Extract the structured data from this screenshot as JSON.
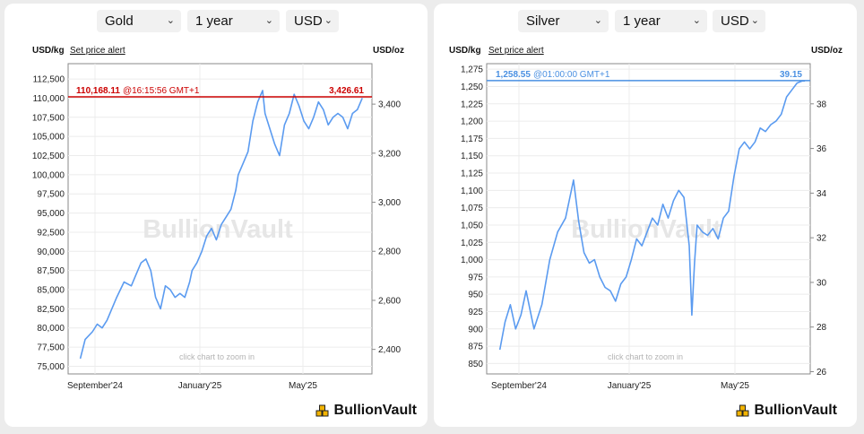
{
  "panels": [
    {
      "metal": "Gold",
      "period": "1 year",
      "currency": "USD",
      "left_unit": "USD/kg",
      "alert_link": "Set price alert",
      "right_unit": "USD/oz",
      "watermark": "BullionVault",
      "zoom_hint": "click chart to zoom in",
      "brand": "BullionVault",
      "current_price_left": "110,168.11",
      "current_time": "@16:15:56 GMT+1",
      "current_price_right": "3,426.61"
    },
    {
      "metal": "Silver",
      "period": "1 year",
      "currency": "USD",
      "left_unit": "USD/kg",
      "alert_link": "Set price alert",
      "right_unit": "USD/oz",
      "watermark": "BullionVault",
      "zoom_hint": "click chart to zoom in",
      "brand": "BullionVault",
      "current_price_left": "1,258.55",
      "current_time": "@01:00:00 GMT+1",
      "current_price_right": "39.15"
    }
  ],
  "colors": {
    "line": "#5b9bf0",
    "gold_price_line": "#cc0000",
    "silver_price_line": "#4a90e2",
    "brand_mark": "#f2b300"
  },
  "chart_data": [
    {
      "type": "line",
      "title": "Gold",
      "x_ticks": [
        "September'24",
        "January'25",
        "May'25"
      ],
      "y_left_ticks": [
        "75,000",
        "77,500",
        "80,000",
        "82,500",
        "85,000",
        "87,500",
        "90,000",
        "92,500",
        "95,000",
        "97,500",
        "100,000",
        "102,500",
        "105,000",
        "107,500",
        "110,000",
        "112,500"
      ],
      "y_left_range": [
        74000,
        114500
      ],
      "y_right_ticks": [
        "2,400",
        "2,600",
        "2,800",
        "3,000",
        "3,200",
        "3,400"
      ],
      "y_right_values": [
        2400,
        2600,
        2800,
        3000,
        3200,
        3400
      ],
      "y_right_range": [
        2300,
        3565
      ],
      "current_value_left": 110168.11,
      "series": [
        {
          "x_month": [
            0.5,
            0.7,
            1.0,
            1.2,
            1.4,
            1.6,
            2.0,
            2.3,
            2.6,
            2.8,
            3.0,
            3.2,
            3.4,
            3.6,
            3.8,
            4.0,
            4.2,
            4.4,
            4.6,
            4.8,
            5.0,
            5.1,
            5.3,
            5.5,
            5.7,
            5.9,
            6.1,
            6.3,
            6.5,
            6.7,
            6.9,
            7.0,
            7.2,
            7.4,
            7.6,
            7.8,
            8.0,
            8.1,
            8.3,
            8.5,
            8.7,
            8.9,
            9.1,
            9.3,
            9.5,
            9.7,
            9.9,
            10.1,
            10.3,
            10.5,
            10.7,
            10.9,
            11.1,
            11.3,
            11.5,
            11.7,
            11.9,
            12.1
          ],
          "y_kg": [
            76000,
            78500,
            79500,
            80500,
            80000,
            81000,
            84000,
            86000,
            85500,
            87000,
            88500,
            89000,
            87500,
            84000,
            82500,
            85500,
            85000,
            84000,
            84500,
            84000,
            86000,
            87500,
            88500,
            90000,
            92000,
            93000,
            91500,
            93500,
            94500,
            95500,
            98000,
            100000,
            101500,
            103000,
            107000,
            109500,
            111000,
            108000,
            106000,
            104000,
            102500,
            106500,
            108000,
            110500,
            109000,
            107000,
            106000,
            107500,
            109500,
            108500,
            106500,
            107500,
            108000,
            107500,
            106000,
            108000,
            108500,
            110000
          ]
        }
      ]
    },
    {
      "type": "line",
      "title": "Silver",
      "x_ticks": [
        "September'24",
        "January'25",
        "May'25"
      ],
      "y_left_ticks": [
        "850",
        "875",
        "900",
        "925",
        "950",
        "975",
        "1,000",
        "1,025",
        "1,050",
        "1,075",
        "1,100",
        "1,125",
        "1,150",
        "1,175",
        "1,200",
        "1,225",
        "1,250",
        "1,275"
      ],
      "y_left_range": [
        835,
        1283
      ],
      "y_right_ticks": [
        "26",
        "28",
        "30",
        "32",
        "34",
        "36",
        "38"
      ],
      "y_right_values": [
        26,
        28,
        30,
        32,
        34,
        36,
        38
      ],
      "y_right_range": [
        25.9,
        39.8
      ],
      "current_value_left": 1258.55,
      "series": [
        {
          "x_month": [
            0.5,
            0.7,
            0.9,
            1.1,
            1.3,
            1.5,
            1.8,
            2.1,
            2.4,
            2.7,
            3.0,
            3.3,
            3.5,
            3.7,
            3.9,
            4.1,
            4.3,
            4.5,
            4.7,
            4.9,
            5.1,
            5.3,
            5.5,
            5.7,
            5.9,
            6.1,
            6.3,
            6.5,
            6.7,
            6.9,
            7.1,
            7.3,
            7.5,
            7.7,
            7.8,
            7.9,
            8.0,
            8.2,
            8.4,
            8.6,
            8.8,
            9.0,
            9.2,
            9.4,
            9.6,
            9.8,
            10.0,
            10.2,
            10.4,
            10.6,
            10.8,
            11.0,
            11.2,
            11.4,
            11.6,
            11.8,
            12.0,
            12.1
          ],
          "y_kg": [
            870,
            910,
            935,
            900,
            920,
            955,
            900,
            935,
            1000,
            1040,
            1060,
            1115,
            1055,
            1010,
            995,
            1000,
            975,
            960,
            955,
            940,
            965,
            975,
            1000,
            1030,
            1020,
            1040,
            1060,
            1050,
            1080,
            1060,
            1085,
            1100,
            1090,
            1020,
            920,
            995,
            1050,
            1040,
            1035,
            1045,
            1030,
            1060,
            1070,
            1120,
            1160,
            1170,
            1160,
            1170,
            1190,
            1185,
            1195,
            1200,
            1210,
            1235,
            1245,
            1255,
            1258,
            1258
          ]
        }
      ]
    }
  ]
}
